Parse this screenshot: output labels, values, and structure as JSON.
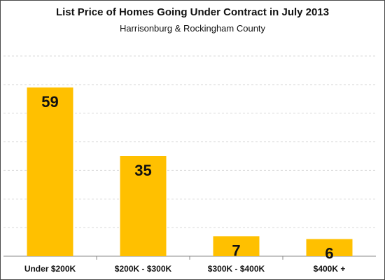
{
  "chart_data": {
    "type": "bar",
    "title": "List Price of Homes Going Under Contract in July 2013",
    "subtitle": "Harrisonburg  & Rockingham County",
    "categories": [
      "Under $200K",
      "$200K - $300K",
      "$300K - $400K",
      "$400K +"
    ],
    "values": [
      59,
      35,
      7,
      6
    ],
    "data_labels": [
      "59",
      "35",
      "7",
      "6"
    ],
    "ylim": [
      0,
      70
    ],
    "grid": true,
    "bar_color": "#FFC000",
    "legend": "none"
  }
}
